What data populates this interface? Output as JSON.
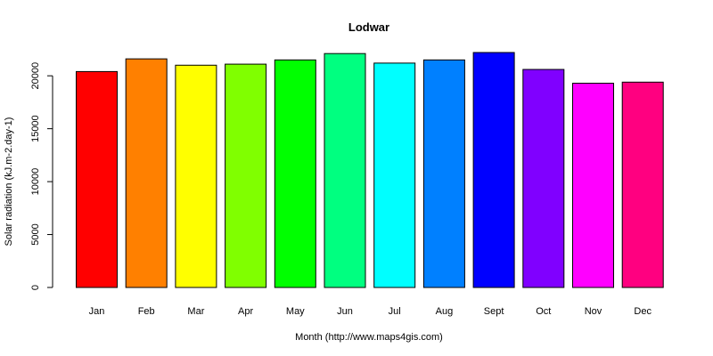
{
  "chart_data": {
    "type": "bar",
    "title": "Lodwar",
    "xlabel": "Month (http://www.maps4gis.com)",
    "ylabel": "Solar radiation (kJ.m-2.day-1)",
    "categories": [
      "Jan",
      "Feb",
      "Mar",
      "Apr",
      "May",
      "Jun",
      "Jul",
      "Aug",
      "Sept",
      "Oct",
      "Nov",
      "Dec"
    ],
    "values": [
      20400,
      21600,
      21000,
      21100,
      21500,
      22100,
      21200,
      21500,
      22200,
      20600,
      19300,
      19400
    ],
    "colors": [
      "#FF0000",
      "#FF8000",
      "#FFFF00",
      "#80FF00",
      "#00FF00",
      "#00FF80",
      "#00FFFF",
      "#0080FF",
      "#0000FF",
      "#8000FF",
      "#FF00FF",
      "#FF0080"
    ],
    "yticks": [
      0,
      5000,
      10000,
      15000,
      20000
    ],
    "ylim": [
      0,
      22200
    ],
    "grid": false,
    "legend": "none"
  }
}
